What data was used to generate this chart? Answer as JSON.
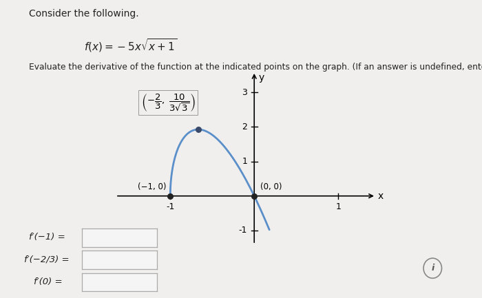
{
  "title_text": "Consider the following.",
  "function_tex": "$f(x) = -5x\\sqrt{x+1}$",
  "eval_text": "Evaluate the derivative of the function at the indicated points on the graph. (If an answer is undefined, enter UNDEFIN",
  "annotation_point1": "(−1, 0)",
  "annotation_point2": "(0, 0)",
  "point1": [
    -1,
    0
  ],
  "point2": [
    0,
    0
  ],
  "point_max_x": -0.6667,
  "point_max_y": 1.9245,
  "xlim": [
    -1.65,
    1.45
  ],
  "ylim": [
    -1.4,
    3.6
  ],
  "xticks": [
    -1,
    1
  ],
  "yticks": [
    -1,
    1,
    2,
    3
  ],
  "curve_color": "#5b8fc9",
  "bg_color": "#f0efee",
  "text_color": "#222222",
  "box_color": "#f5f5f5",
  "box_edge_color": "#aaaaaa",
  "fp1_label": "f′(−1) =",
  "fp2_label": "f′(−2/3) =",
  "fp3_label": "f′(0) =",
  "fig_width": 7.0,
  "fig_height": 4.33
}
